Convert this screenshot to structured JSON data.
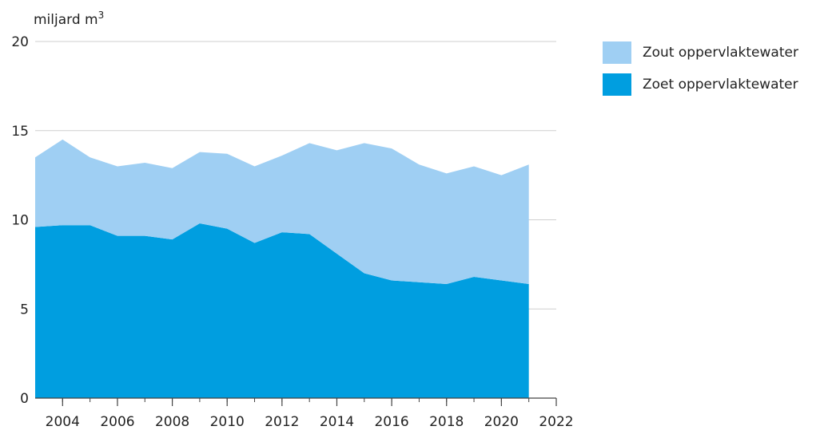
{
  "chart_data": {
    "type": "area",
    "stacked": true,
    "unit_label_base": "miljard m",
    "unit_label_sup": "3",
    "x": [
      2003,
      2004,
      2005,
      2006,
      2007,
      2008,
      2009,
      2010,
      2011,
      2012,
      2013,
      2014,
      2015,
      2016,
      2017,
      2018,
      2019,
      2020,
      2021
    ],
    "series": [
      {
        "name": "Zoet oppervlaktewater",
        "color": "#009ee0",
        "values": [
          9.6,
          9.7,
          9.7,
          9.1,
          9.1,
          8.9,
          9.8,
          9.5,
          8.7,
          9.3,
          9.2,
          8.1,
          7.0,
          6.6,
          6.5,
          6.4,
          6.8,
          6.6,
          6.4
        ]
      },
      {
        "name": "Zout oppervlaktewater",
        "color": "#9fcff3",
        "values": [
          3.9,
          4.8,
          3.8,
          3.9,
          4.1,
          4.0,
          4.0,
          4.2,
          4.3,
          4.3,
          5.1,
          5.8,
          7.3,
          7.4,
          6.6,
          6.2,
          6.2,
          5.9,
          6.7
        ]
      }
    ],
    "xlim": [
      2003,
      2022
    ],
    "ylim": [
      0,
      20
    ],
    "xticks": [
      "2004",
      "2006",
      "2008",
      "2010",
      "2012",
      "2014",
      "2016",
      "2018",
      "2020",
      "2022"
    ],
    "yticks": [
      "0",
      "5",
      "10",
      "15",
      "20"
    ],
    "grid": "horizontal",
    "legend_position": "right"
  }
}
